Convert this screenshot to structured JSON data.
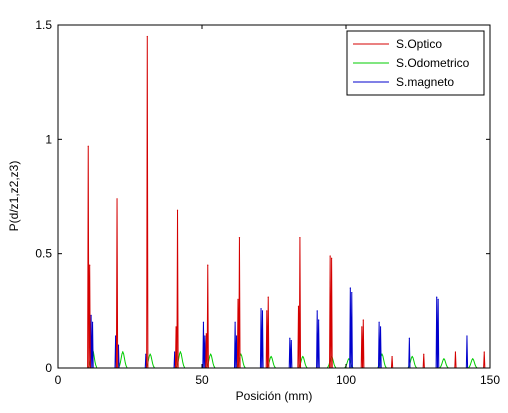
{
  "chart_data": {
    "type": "line",
    "title": "",
    "xlabel": "Posición (mm)",
    "ylabel": "P(d/z1,z2,z3)",
    "xlim": [
      0,
      150
    ],
    "ylim": [
      0,
      1.5
    ],
    "xticks": [
      0,
      50,
      100,
      150
    ],
    "yticks": [
      0,
      0.5,
      1,
      1.5
    ],
    "xtick_labels": [
      "0",
      "50",
      "100",
      "150"
    ],
    "ytick_labels": [
      "0",
      "0.5",
      "1",
      "1.5"
    ],
    "grid": false,
    "legend_position": "top-right",
    "series": [
      {
        "name": "S.Optico",
        "color": "#d40000",
        "style": "spike",
        "peaks": [
          {
            "x": 10.5,
            "y": 0.97
          },
          {
            "x": 11.0,
            "y": 0.45
          },
          {
            "x": 20.5,
            "y": 0.74
          },
          {
            "x": 31.0,
            "y": 1.45
          },
          {
            "x": 41.5,
            "y": 0.69
          },
          {
            "x": 41.0,
            "y": 0.18
          },
          {
            "x": 52.0,
            "y": 0.45
          },
          {
            "x": 51.5,
            "y": 0.15
          },
          {
            "x": 63.0,
            "y": 0.57
          },
          {
            "x": 62.5,
            "y": 0.3
          },
          {
            "x": 73.0,
            "y": 0.31
          },
          {
            "x": 72.5,
            "y": 0.25
          },
          {
            "x": 84.0,
            "y": 0.57
          },
          {
            "x": 83.5,
            "y": 0.27
          },
          {
            "x": 94.5,
            "y": 0.49
          },
          {
            "x": 95.0,
            "y": 0.48
          },
          {
            "x": 106.0,
            "y": 0.21
          },
          {
            "x": 105.5,
            "y": 0.18
          },
          {
            "x": 116.0,
            "y": 0.05
          },
          {
            "x": 127.0,
            "y": 0.06
          },
          {
            "x": 138.0,
            "y": 0.07
          },
          {
            "x": 148.0,
            "y": 0.07
          }
        ]
      },
      {
        "name": "S.Odometrico",
        "color": "#00cc00",
        "style": "bump",
        "peaks": [
          {
            "x": 12.0,
            "y": 0.08
          },
          {
            "x": 22.5,
            "y": 0.07
          },
          {
            "x": 32.0,
            "y": 0.06
          },
          {
            "x": 42.5,
            "y": 0.07
          },
          {
            "x": 53.0,
            "y": 0.06
          },
          {
            "x": 63.5,
            "y": 0.06
          },
          {
            "x": 74.0,
            "y": 0.05
          },
          {
            "x": 85.0,
            "y": 0.05
          },
          {
            "x": 95.0,
            "y": 0.05
          },
          {
            "x": 101.0,
            "y": 0.04
          },
          {
            "x": 112.5,
            "y": 0.06
          },
          {
            "x": 123.0,
            "y": 0.05
          },
          {
            "x": 134.0,
            "y": 0.04
          },
          {
            "x": 144.0,
            "y": 0.04
          }
        ]
      },
      {
        "name": "S.magneto",
        "color": "#0000cc",
        "style": "spike",
        "peaks": [
          {
            "x": 11.5,
            "y": 0.23
          },
          {
            "x": 12.0,
            "y": 0.2
          },
          {
            "x": 20.0,
            "y": 0.14
          },
          {
            "x": 21.0,
            "y": 0.1
          },
          {
            "x": 30.5,
            "y": 0.06
          },
          {
            "x": 40.5,
            "y": 0.07
          },
          {
            "x": 50.5,
            "y": 0.2
          },
          {
            "x": 51.0,
            "y": 0.14
          },
          {
            "x": 61.5,
            "y": 0.2
          },
          {
            "x": 62.0,
            "y": 0.14
          },
          {
            "x": 70.5,
            "y": 0.26
          },
          {
            "x": 71.0,
            "y": 0.25
          },
          {
            "x": 80.5,
            "y": 0.13
          },
          {
            "x": 81.0,
            "y": 0.12
          },
          {
            "x": 90.0,
            "y": 0.25
          },
          {
            "x": 90.5,
            "y": 0.21
          },
          {
            "x": 101.5,
            "y": 0.35
          },
          {
            "x": 102.0,
            "y": 0.33
          },
          {
            "x": 111.5,
            "y": 0.2
          },
          {
            "x": 112.0,
            "y": 0.18
          },
          {
            "x": 122.0,
            "y": 0.13
          },
          {
            "x": 131.5,
            "y": 0.31
          },
          {
            "x": 132.0,
            "y": 0.3
          },
          {
            "x": 142.0,
            "y": 0.14
          }
        ]
      }
    ]
  }
}
